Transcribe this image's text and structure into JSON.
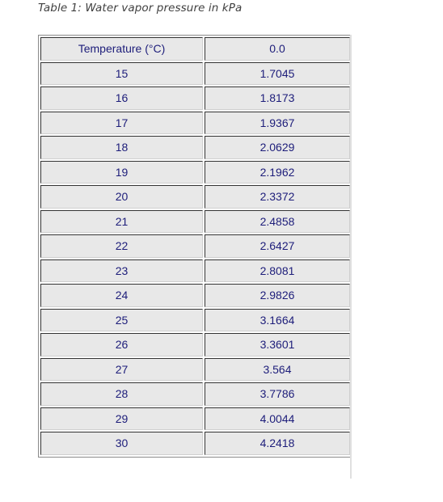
{
  "caption": "Table 1: Water vapor pressure in kPa",
  "table": {
    "headers": [
      "Temperature (°C)",
      "0.0"
    ],
    "rows": [
      [
        "15",
        "1.7045"
      ],
      [
        "16",
        "1.8173"
      ],
      [
        "17",
        "1.9367"
      ],
      [
        "18",
        "2.0629"
      ],
      [
        "19",
        "2.1962"
      ],
      [
        "20",
        "2.3372"
      ],
      [
        "21",
        "2.4858"
      ],
      [
        "22",
        "2.6427"
      ],
      [
        "23",
        "2.8081"
      ],
      [
        "24",
        "2.9826"
      ],
      [
        "25",
        "3.1664"
      ],
      [
        "26",
        "3.3601"
      ],
      [
        "27",
        "3.564"
      ],
      [
        "28",
        "3.7786"
      ],
      [
        "29",
        "4.0044"
      ],
      [
        "30",
        "4.2418"
      ]
    ]
  }
}
